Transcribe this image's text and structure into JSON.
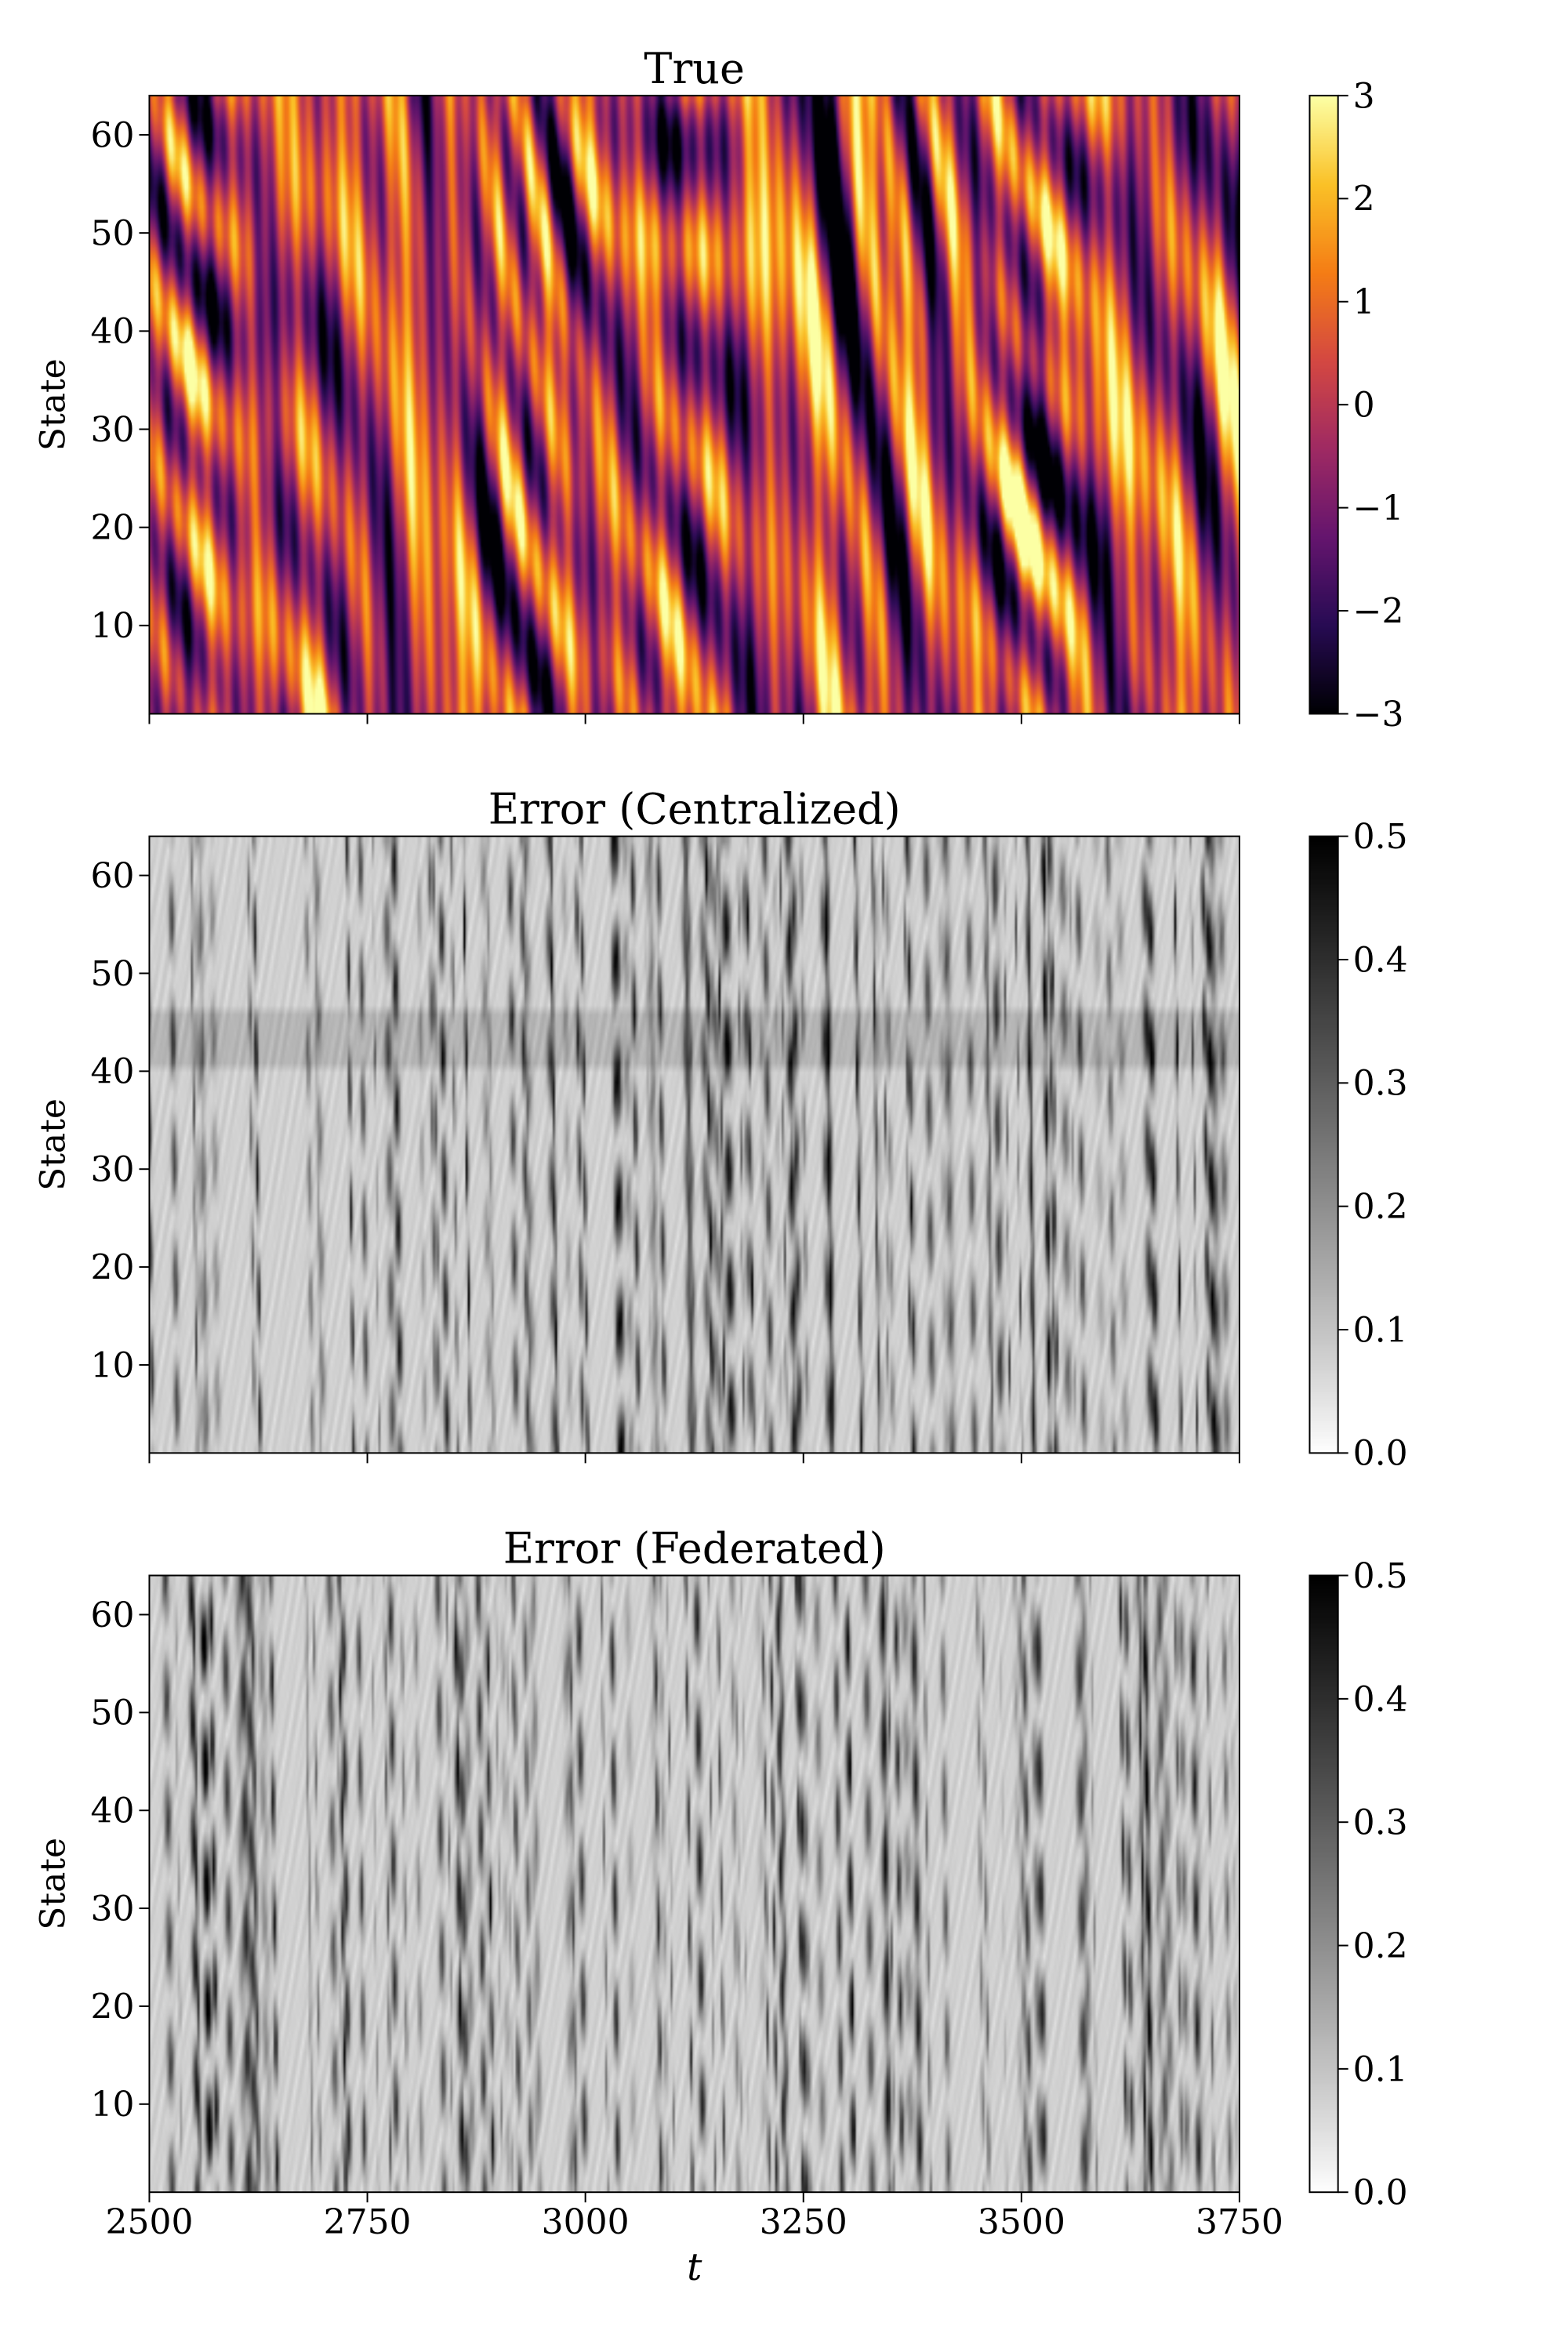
{
  "chart_data": [
    {
      "type": "heatmap",
      "title": "True",
      "ylabel": "State",
      "xlabel": "",
      "xlim": [
        2500,
        3750
      ],
      "ylim": [
        1,
        64
      ],
      "x_ticks": [
        2500,
        2750,
        3000,
        3250,
        3500,
        3750
      ],
      "x_tick_labels_shown": false,
      "y_ticks": [
        10,
        20,
        30,
        40,
        50,
        60
      ],
      "y_tick_labels": [
        "10",
        "20",
        "30",
        "40",
        "50",
        "60"
      ],
      "colormap": "inferno",
      "colorbar": {
        "min": -3,
        "max": 3,
        "ticks": [
          3,
          2,
          1,
          0,
          -1,
          -2,
          -3
        ],
        "tick_labels": [
          "3",
          "2",
          "1",
          "0",
          "−1",
          "−2",
          "−3"
        ]
      },
      "field_description": "chaotic traveling-wave state field (Kuramoto-Sivashinsky-like), values roughly in [-3, 3]"
    },
    {
      "type": "heatmap",
      "title": "Error (Centralized)",
      "ylabel": "State",
      "xlabel": "",
      "xlim": [
        2500,
        3750
      ],
      "ylim": [
        1,
        64
      ],
      "x_ticks": [
        2500,
        2750,
        3000,
        3250,
        3500,
        3750
      ],
      "x_tick_labels_shown": false,
      "y_ticks": [
        10,
        20,
        30,
        40,
        50,
        60
      ],
      "y_tick_labels": [
        "10",
        "20",
        "30",
        "40",
        "50",
        "60"
      ],
      "colormap": "Greys",
      "colorbar": {
        "min": 0.0,
        "max": 0.5,
        "ticks": [
          0.5,
          0.4,
          0.3,
          0.2,
          0.1,
          0.0
        ],
        "tick_labels": [
          "0.5",
          "0.4",
          "0.3",
          "0.2",
          "0.1",
          "0.0"
        ]
      },
      "field_description": "absolute error, mostly below 0.15 with thin darker streaks; faint horizontal band near state 41-46"
    },
    {
      "type": "heatmap",
      "title": "Error (Federated)",
      "ylabel": "State",
      "xlabel": "t",
      "xlim": [
        2500,
        3750
      ],
      "ylim": [
        1,
        64
      ],
      "x_ticks": [
        2500,
        2750,
        3000,
        3250,
        3500,
        3750
      ],
      "x_tick_labels": [
        "2500",
        "2750",
        "3000",
        "3250",
        "3500",
        "3750"
      ],
      "x_tick_labels_shown": true,
      "y_ticks": [
        10,
        20,
        30,
        40,
        50,
        60
      ],
      "y_tick_labels": [
        "10",
        "20",
        "30",
        "40",
        "50",
        "60"
      ],
      "colormap": "Greys",
      "colorbar": {
        "min": 0.0,
        "max": 0.5,
        "ticks": [
          0.5,
          0.4,
          0.3,
          0.2,
          0.1,
          0.0
        ],
        "tick_labels": [
          "0.5",
          "0.4",
          "0.3",
          "0.2",
          "0.1",
          "0.0"
        ]
      },
      "field_description": "absolute error, mostly below 0.15 with thin darker vertical streaks"
    }
  ]
}
